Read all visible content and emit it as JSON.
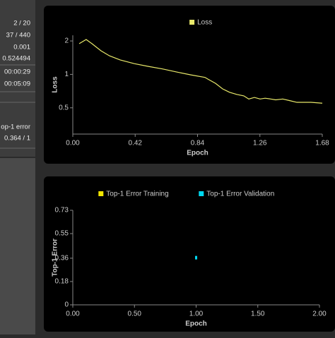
{
  "sidebar": [
    "2 / 20",
    "37 / 440",
    "0.001",
    "0.524494",
    "00:00:29",
    "00:05:09",
    "op-1 error",
    "0.364 / 1"
  ],
  "chart_data": [
    {
      "type": "line",
      "ylabel": "Loss",
      "xlabel": "Epoch",
      "log_y": true,
      "xlim": [
        0,
        1.68
      ],
      "xticks": [
        {
          "value": 0,
          "label": "0.00"
        },
        {
          "value": 0.42,
          "label": "0.42"
        },
        {
          "value": 0.84,
          "label": "0.84"
        },
        {
          "value": 1.26,
          "label": "1.26"
        },
        {
          "value": 1.68,
          "label": "1.68"
        }
      ],
      "ylim": [
        0.29,
        2.25
      ],
      "yticks": [
        2,
        1,
        0.5
      ],
      "series": [
        {
          "name": "Loss",
          "color": "#e8e86a",
          "x": [
            0.043,
            0.09,
            0.129,
            0.19,
            0.247,
            0.319,
            0.414,
            0.509,
            0.604,
            0.7,
            0.795,
            0.89,
            0.914,
            0.961,
            1.009,
            1.056,
            1.104,
            1.152,
            1.185,
            1.223,
            1.261,
            1.295,
            1.333,
            1.366,
            1.414,
            1.461,
            1.509,
            1.604,
            1.68
          ],
          "values": [
            1.89,
            2.06,
            1.89,
            1.63,
            1.47,
            1.35,
            1.25,
            1.18,
            1.12,
            1.05,
            0.99,
            0.94,
            0.9,
            0.83,
            0.74,
            0.69,
            0.66,
            0.64,
            0.6,
            0.62,
            0.6,
            0.61,
            0.6,
            0.59,
            0.6,
            0.58,
            0.56,
            0.56,
            0.55
          ]
        }
      ]
    },
    {
      "type": "scatter",
      "ylabel": "Top-1 Error",
      "xlabel": "Epoch",
      "log_y": false,
      "xlim": [
        0,
        2
      ],
      "xticks": [
        {
          "value": 0,
          "label": "0.00"
        },
        {
          "value": 0.5,
          "label": "0.50"
        },
        {
          "value": 1,
          "label": "1.00"
        },
        {
          "value": 1.5,
          "label": "1.50"
        },
        {
          "value": 2,
          "label": "2.00"
        }
      ],
      "ylim": [
        0,
        0.73
      ],
      "yticks": [
        0,
        0.18,
        0.36,
        0.55,
        0.73
      ],
      "series": [
        {
          "name": "Top-1 Error Training",
          "color": "#f2e600",
          "x": [],
          "values": []
        },
        {
          "name": "Top-1 Error Validation",
          "color": "#00d8f0",
          "x": [
            1
          ],
          "values": [
            0.364
          ]
        }
      ]
    }
  ]
}
